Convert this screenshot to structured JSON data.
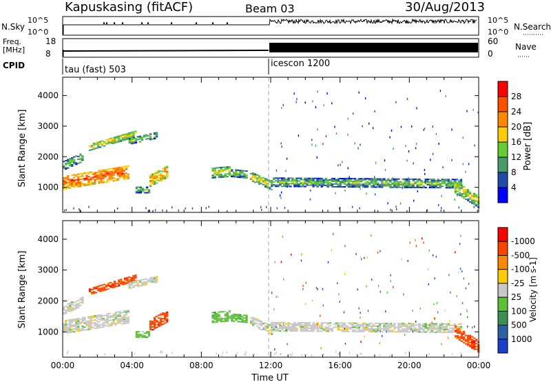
{
  "header": {
    "station": "Kapuskasing (fitACF)",
    "beam": "Beam 03",
    "date": "30/Aug/2013"
  },
  "status": {
    "nsky_label": "N.Sky",
    "nsearch_label": "N.Search",
    "nsky_ticks": [
      "10^5",
      "10^0"
    ],
    "nsearch_ticks": [
      "10^5",
      "10^0"
    ],
    "freq_label_line1": "Freq.",
    "freq_label_line2": "[MHz]",
    "freq_ticks": [
      "18",
      "8"
    ],
    "nave_label": "Nave",
    "nave_ticks": [
      "60",
      "0"
    ],
    "cpid_label": "CPID",
    "cpid_segments": [
      {
        "label": "tau (fast) 503",
        "start_hour": 0,
        "end_hour": 12
      },
      {
        "label": "icescon 1200",
        "start_hour": 12,
        "end_hour": 24
      }
    ]
  },
  "chart_data": [
    {
      "type": "heatmap",
      "title": "",
      "ylabel": "Slant Range [km]",
      "xlabel": "",
      "xlim": [
        0,
        24
      ],
      "ylim": [
        180,
        4600
      ],
      "y_ticks": [
        1000,
        2000,
        3000,
        4000
      ],
      "colorbar": {
        "label": "Power [dB]",
        "ticks": [
          "4",
          "8",
          "12",
          "16",
          "20",
          "24",
          "28"
        ],
        "colors": [
          "#0000ff",
          "#1e4ca8",
          "#4a9b6a",
          "#66cc33",
          "#ffcc00",
          "#ff8800",
          "#ff5000",
          "#ff0000"
        ]
      }
    },
    {
      "type": "heatmap",
      "title": "",
      "ylabel": "Slant Range [km]",
      "xlabel": "Time UT",
      "xlim": [
        0,
        24
      ],
      "ylim": [
        180,
        4600
      ],
      "y_ticks": [
        1000,
        2000,
        3000,
        4000
      ],
      "x_ticks": [
        "00:00",
        "04:00",
        "08:00",
        "12:00",
        "16:00",
        "20:00",
        "00:00"
      ],
      "colorbar": {
        "label": "Velocity [m s-1]",
        "ticks": [
          "1000",
          "500",
          "100",
          "25",
          "-25",
          "-100",
          "-500",
          "-1000"
        ],
        "colors": [
          "#1a3fcc",
          "#2e5fa6",
          "#3c8f55",
          "#5bc236",
          "#c8c8c8",
          "#ffcc00",
          "#ff8800",
          "#ff4400",
          "#ff0000"
        ]
      }
    }
  ]
}
